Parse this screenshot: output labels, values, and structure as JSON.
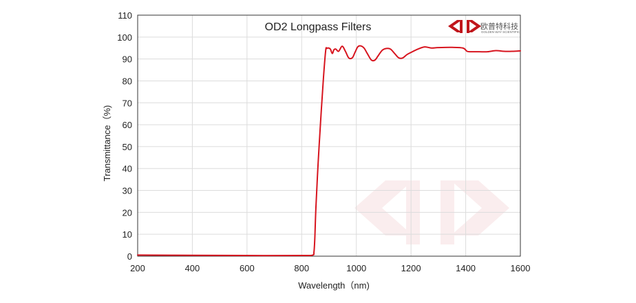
{
  "chart_data": {
    "type": "line",
    "title": "OD2  Longpass Filters",
    "xlabel": "Wavelength（nm)",
    "ylabel": "Transmittance（%)",
    "xlim": [
      200,
      1600
    ],
    "ylim": [
      0,
      110
    ],
    "xticks": [
      200,
      400,
      600,
      800,
      1000,
      1200,
      1400,
      1600
    ],
    "yticks": [
      0,
      10,
      20,
      30,
      40,
      50,
      60,
      70,
      80,
      90,
      100,
      110
    ],
    "grid": true,
    "series": [
      {
        "color": "#d7141e",
        "x": [
          200,
          400,
          600,
          800,
          840,
          845,
          848,
          852,
          860,
          870,
          880,
          888,
          892,
          898,
          905,
          912,
          918,
          925,
          935,
          948,
          960,
          972,
          985,
          995,
          1005,
          1015,
          1028,
          1040,
          1055,
          1068,
          1080,
          1095,
          1110,
          1125,
          1140,
          1155,
          1170,
          1185,
          1200,
          1225,
          1250,
          1275,
          1300,
          1350,
          1390,
          1405,
          1420,
          1450,
          1480,
          1510,
          1540,
          1570,
          1600
        ],
        "y": [
          0.5,
          0.4,
          0.3,
          0.3,
          0.5,
          2,
          8,
          22,
          42,
          63,
          82,
          94,
          94.8,
          95,
          94.5,
          92.5,
          94.2,
          94.5,
          93.5,
          95.8,
          93.5,
          90.5,
          90.5,
          93,
          95.5,
          96,
          95,
          92.5,
          89.5,
          89.5,
          91.5,
          94,
          94.8,
          94.5,
          92.5,
          90.5,
          90.5,
          92,
          93,
          94.5,
          95.5,
          95,
          95.2,
          95.3,
          95,
          93.5,
          93.3,
          93.3,
          93.3,
          93.8,
          93.5,
          93.5,
          93.7
        ]
      }
    ]
  },
  "logo": {
    "cn_text": "欧普特科技",
    "en_text": "GOLDEN WAY SCIENTIFIC",
    "color": "#c0151b"
  }
}
